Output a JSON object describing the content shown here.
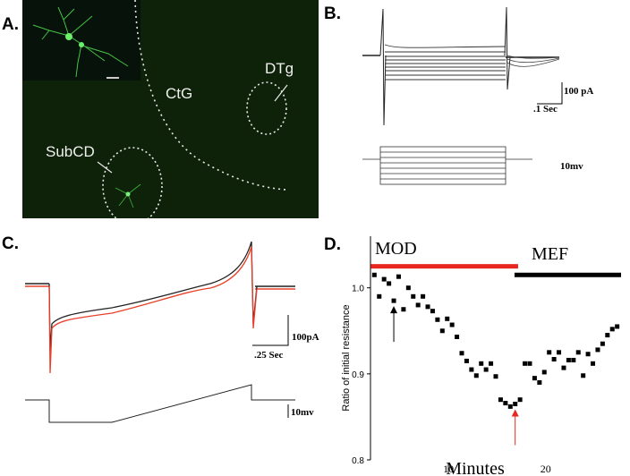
{
  "panels": {
    "a": {
      "label": "A.",
      "regions": {
        "ctg": "CtG",
        "dtg": "DTg",
        "subcd": "SubCD"
      }
    },
    "b": {
      "label": "B.",
      "scale_current": "100 pA",
      "scale_time": ".1 Sec",
      "scale_voltage": "10mv"
    },
    "c": {
      "label": "C.",
      "scale_current": "100pA",
      "scale_time": ".25 Sec",
      "scale_voltage": "10mv"
    },
    "d": {
      "label": "D.",
      "mod_label": "MOD",
      "mef_label": "MEF"
    }
  },
  "colors": {
    "trace_black": "#222222",
    "trace_red": "#e8402a",
    "mod_bar": "#e8281e",
    "mef_bar": "#000000",
    "micro_bg": "#0d2208",
    "neuron_green": "#4cd84c"
  },
  "chart_data": {
    "type": "scatter",
    "xlabel": "Minutes",
    "ylabel": "Ratio of initial resistance",
    "xlim": [
      1.6,
      27.4
    ],
    "ylim": [
      0.8,
      1.06
    ],
    "xticks": [
      10,
      20
    ],
    "yticks": [
      0.8,
      0.9,
      1.0
    ],
    "ytick_labels": [
      "0.8",
      "0.9",
      "1.0"
    ],
    "series": [
      {
        "x": [
          2,
          2.5,
          3,
          3.5,
          4,
          4.5,
          5,
          5.5,
          6,
          6.5,
          7,
          7.5,
          8,
          8.5,
          9,
          9.5,
          10,
          10.5,
          11,
          11.5,
          12,
          12.5,
          13,
          13.5,
          14,
          14.5,
          15,
          15.5,
          16,
          16.5,
          17,
          17.5,
          18,
          18.5,
          19,
          19.5,
          20,
          20.5,
          21,
          21.5,
          22,
          22.5,
          23,
          23.5,
          24,
          24.5,
          25,
          25.5,
          26,
          26.5,
          27
        ],
        "y": [
          1.015,
          0.99,
          1.01,
          1.005,
          0.985,
          1.013,
          0.975,
          1.0,
          0.99,
          0.98,
          0.99,
          0.978,
          0.973,
          0.963,
          0.95,
          0.964,
          0.957,
          0.943,
          0.924,
          0.915,
          0.905,
          0.898,
          0.912,
          0.905,
          0.912,
          0.897,
          0.87,
          0.866,
          0.862,
          0.865,
          0.87,
          0.912,
          0.912,
          0.895,
          0.89,
          0.902,
          0.925,
          0.917,
          0.925,
          0.907,
          0.916,
          0.916,
          0.925,
          0.898,
          0.923,
          0.912,
          0.928,
          0.935,
          0.945,
          0.952,
          0.955
        ]
      }
    ],
    "conditions": [
      {
        "name": "MOD",
        "from": 2,
        "to": 16.8
      },
      {
        "name": "MEF",
        "from": 16.8,
        "to": 27.4
      }
    ],
    "markers": [
      {
        "x": 4,
        "y": 0.985,
        "color": "#000000"
      },
      {
        "x": 16.5,
        "y": 0.865,
        "color": "#e8281e"
      }
    ]
  }
}
